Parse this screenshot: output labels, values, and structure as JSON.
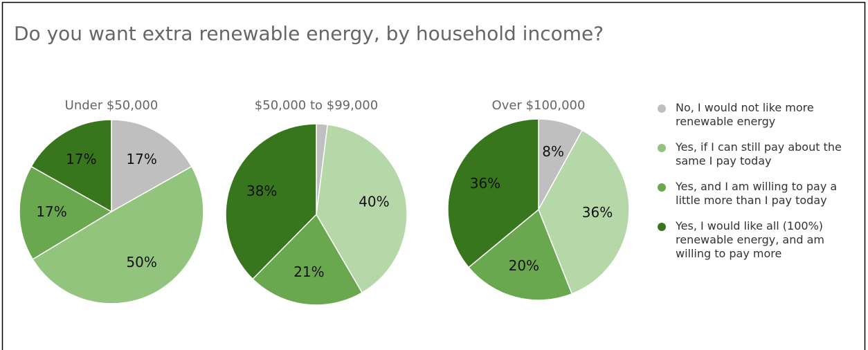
{
  "title": "Do you want extra renewable energy, by household income?",
  "chart_data": [
    {
      "type": "pie",
      "title": "Under $50,000",
      "categories": [
        "No, I would not like more renewable energy",
        "Yes, if I can still pay about the same I pay today",
        "Yes, and I am willing to pay a little more than I pay today",
        "Yes, I would like all (100%) renewable energy, and am willing to pay more"
      ],
      "values": [
        17,
        50,
        17,
        17
      ],
      "value_labels": [
        "17%",
        "50%",
        "17%",
        "17%"
      ],
      "colors": [
        "#bfbfbf",
        "#93c47d",
        "#6aa84f",
        "#38761d"
      ]
    },
    {
      "type": "pie",
      "title": "$50,000 to $99,000",
      "categories": [
        "No, I would not like more renewable energy",
        "Yes, if I can still pay about the same I pay today",
        "Yes, and I am willing to pay a little more than I pay today",
        "Yes, I would like all (100%) renewable energy, and am willing to pay more"
      ],
      "values": [
        2,
        40,
        21,
        38
      ],
      "value_labels": [
        null,
        "40%",
        "21%",
        "38%"
      ],
      "colors": [
        "#bfbfbf",
        "#b6d7a8",
        "#6aa84f",
        "#38761d"
      ]
    },
    {
      "type": "pie",
      "title": "Over $100,000",
      "categories": [
        "No, I would not like more renewable energy",
        "Yes, if I can still pay about the same I pay today",
        "Yes, and I am willing to pay a little more than I pay today",
        "Yes, I would like all (100%) renewable energy, and am willing to pay more"
      ],
      "values": [
        8,
        36,
        20,
        36
      ],
      "value_labels": [
        "8%",
        "36%",
        "20%",
        "36%"
      ],
      "colors": [
        "#bfbfbf",
        "#b6d7a8",
        "#6aa84f",
        "#38761d"
      ]
    }
  ]
}
